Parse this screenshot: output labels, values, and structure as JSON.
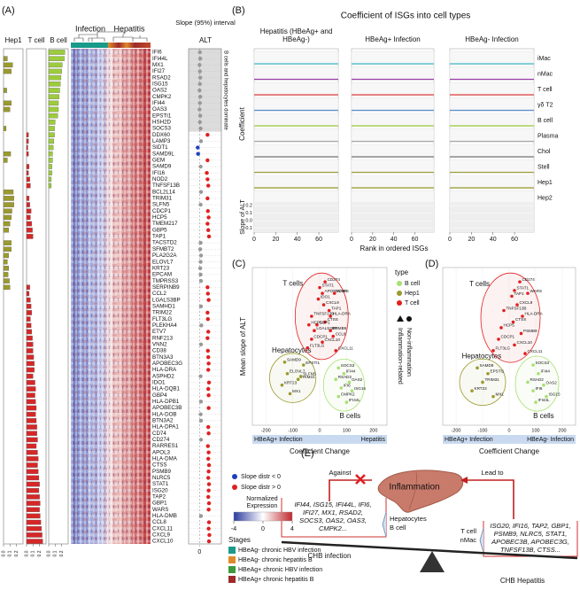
{
  "panel_labels": [
    "(A)",
    "(B)",
    "(C)",
    "(D)",
    "(E)"
  ],
  "panel_a": {
    "heatmap_groups": [
      "Infection",
      "Hepatitis"
    ],
    "genes": [
      "IFI6",
      "IFI44L",
      "MX1",
      "IFI27",
      "RSAD2",
      "ISG15",
      "OAS2",
      "CMPK2",
      "IFI44",
      "OAS3",
      "EPSTI1",
      "HSH2D",
      "SOCS3",
      "DDX60",
      "LAMP3",
      "SIDT1",
      "SAMD9L",
      "GEM",
      "SAMD9",
      "IFI16",
      "NOD2",
      "TNFSF13B",
      "BCL2L14",
      "TRIM31",
      "SLFN5",
      "CDCP1",
      "HCP5",
      "TMEM217",
      "GBP5",
      "TAP1",
      "TACSTD2",
      "SFMBT2",
      "PLA2G2A",
      "ELOVL7",
      "KRT23",
      "EPCAM",
      "TMPRSS3",
      "SERPINB9",
      "CCL2",
      "LGALS3BP",
      "SAMHD1",
      "TRIM22",
      "FLT3LG",
      "PLEKHA4",
      "ETV7",
      "RNF213",
      "VNN2",
      "CD38",
      "BTN3A3",
      "APOBEC3G",
      "HLA-DRA",
      "ASPHD2",
      "IDO1",
      "HLA-DQB1",
      "GBP4",
      "HLA-DPB1",
      "APOBEC3B",
      "HLA-DOB",
      "BTN3A2",
      "HLA-DPA1",
      "CD74",
      "CD274",
      "RARRES1",
      "APOL3",
      "HLA-DMA",
      "CTSS",
      "PSMB9",
      "NLRC5",
      "STAT1",
      "ISG20",
      "TAP2",
      "GBP1",
      "WARS",
      "HLA-DMB",
      "CCL8",
      "CXCL11",
      "CXCL9",
      "CXCL10"
    ],
    "bar_xlim": [
      0,
      0.3
    ],
    "bar_xticks": [
      {
        "value": 0,
        "label": "0.0"
      },
      {
        "value": 0.1,
        "label": "0.1"
      },
      {
        "value": 0.2,
        "label": "0.2"
      }
    ],
    "bars": [
      {
        "name": "Hep1",
        "color": "#9a9a2e",
        "values": [
          0,
          0.06,
          0.14,
          0.12,
          0,
          0,
          0.05,
          0,
          0.12,
          0.1,
          0,
          0,
          0.04,
          0,
          0,
          0,
          0.11,
          0.06,
          0,
          0,
          0,
          0,
          0.15,
          0.16,
          0.16,
          0.13,
          0.12,
          0.1,
          0.08,
          0,
          0.12,
          0.12,
          0.08,
          0.06,
          0.08,
          0.07,
          0.09,
          0.1,
          0,
          0,
          0,
          0,
          0,
          0,
          0,
          0,
          0,
          0,
          0,
          0,
          0,
          0,
          0,
          0,
          0,
          0,
          0,
          0,
          0,
          0,
          0,
          0,
          0,
          0,
          0,
          0,
          0,
          0,
          0,
          0,
          0,
          0,
          0,
          0,
          0,
          0,
          0,
          0
        ]
      },
      {
        "name": "T cell",
        "color": "#d62728",
        "values": [
          0,
          0,
          0,
          0,
          0,
          0,
          0,
          0,
          0,
          0,
          0,
          0,
          0,
          0.03,
          0.03,
          0.02,
          0.03,
          0,
          0.04,
          0.03,
          0.05,
          0.06,
          0,
          0.04,
          0.05,
          0.07,
          0.06,
          0.08,
          0.09,
          0.1,
          0,
          0,
          0,
          0,
          0,
          0,
          0,
          0.05,
          0.04,
          0.06,
          0.07,
          0.08,
          0.06,
          0.07,
          0.08,
          0.09,
          0.1,
          0.1,
          0.11,
          0.12,
          0.12,
          0.1,
          0.13,
          0.14,
          0.13,
          0.14,
          0.15,
          0.14,
          0.15,
          0.16,
          0.16,
          0.17,
          0.15,
          0.17,
          0.18,
          0.17,
          0.18,
          0.19,
          0.2,
          0.19,
          0.2,
          0.21,
          0.2,
          0.21,
          0.22,
          0.23,
          0.24,
          0.25
        ]
      },
      {
        "name": "B cell",
        "color": "#9ccc3c",
        "values": [
          0.25,
          0.24,
          0.21,
          0.2,
          0.19,
          0.18,
          0.17,
          0.16,
          0.15,
          0.15,
          0.14,
          0.1,
          0.09,
          0.09,
          0.08,
          0.07,
          0.06,
          0.06,
          0.05,
          0.05,
          0.04,
          0.04,
          0,
          0,
          0,
          0,
          0,
          0,
          0,
          0,
          0,
          0,
          0,
          0,
          0,
          0,
          0,
          0,
          0,
          0,
          0,
          0,
          0,
          0,
          0,
          0,
          0,
          0,
          0,
          0,
          0,
          0,
          0,
          0,
          0,
          0,
          0,
          0,
          0,
          0,
          0,
          0,
          0,
          0,
          0,
          0,
          0,
          0,
          0,
          0,
          0,
          0,
          0,
          0,
          0,
          0,
          0,
          0
        ]
      }
    ],
    "slope_title": "Slope (95%) interval",
    "slope_subtitle": "ALT",
    "shaded_label": "B cells and hepatocytes dominate",
    "slope_xlim": [
      -0.3,
      0.6
    ],
    "slope_xticks": [
      0
    ],
    "slope": {
      "values": [
        0.01,
        0.02,
        0.0,
        0.01,
        0.02,
        0.01,
        0.0,
        0.02,
        0.01,
        0.0,
        0.02,
        0.01,
        0.03,
        0.22,
        0.04,
        -0.05,
        -0.04,
        0.22,
        0.03,
        0.2,
        0.22,
        0.24,
        0.04,
        0.22,
        0.03,
        0.23,
        0.25,
        0.22,
        0.24,
        0.26,
        0.03,
        0.02,
        0.04,
        0.03,
        0.02,
        0.03,
        0.04,
        0.22,
        0.23,
        0.25,
        0.04,
        0.22,
        0.23,
        0.05,
        0.24,
        0.22,
        0.04,
        0.23,
        0.24,
        0.25,
        0.24,
        0.03,
        0.26,
        0.24,
        0.25,
        0.04,
        0.25,
        0.03,
        0.04,
        0.24,
        0.25,
        0.04,
        0.23,
        0.25,
        0.24,
        0.26,
        0.25,
        0.24,
        0.26,
        0.25,
        0.24,
        0.26,
        0.25,
        0.04,
        0.26,
        0.25,
        0.27,
        0.26
      ],
      "colors": [
        "#999",
        "#999",
        "#999",
        "#999",
        "#999",
        "#999",
        "#999",
        "#999",
        "#999",
        "#999",
        "#999",
        "#999",
        "#999",
        "#e02020",
        "#999",
        "#2040c0",
        "#2040c0",
        "#e02020",
        "#999",
        "#e02020",
        "#e02020",
        "#e02020",
        "#999",
        "#e02020",
        "#999",
        "#e02020",
        "#e02020",
        "#e02020",
        "#e02020",
        "#e02020",
        "#999",
        "#999",
        "#999",
        "#999",
        "#999",
        "#999",
        "#999",
        "#e02020",
        "#e02020",
        "#e02020",
        "#999",
        "#e02020",
        "#e02020",
        "#999",
        "#e02020",
        "#e02020",
        "#999",
        "#e02020",
        "#e02020",
        "#e02020",
        "#e02020",
        "#999",
        "#e02020",
        "#e02020",
        "#e02020",
        "#999",
        "#e02020",
        "#999",
        "#999",
        "#e02020",
        "#e02020",
        "#999",
        "#e02020",
        "#e02020",
        "#e02020",
        "#e02020",
        "#e02020",
        "#e02020",
        "#e02020",
        "#e02020",
        "#e02020",
        "#e02020",
        "#e02020",
        "#999",
        "#e02020",
        "#e02020",
        "#e02020",
        "#e02020"
      ]
    },
    "slope_legend": [
      {
        "label": "Slope distr < 0",
        "color": "#1f3fbf"
      },
      {
        "label": "Slope distr > 0",
        "color": "#e02020"
      }
    ],
    "expression_legend": {
      "title": [
        "Normalized",
        "Expression"
      ],
      "ticks": [
        -4,
        0,
        4
      ],
      "colors": [
        "#2b3a9e",
        "#ffffff",
        "#c0282c"
      ]
    },
    "stages": {
      "title": "Stages",
      "items": [
        {
          "label": "HBeAg- chronic HBV infection",
          "color": "#1a9a8a"
        },
        {
          "label": "HBeAg- chronic hepatitis B",
          "color": "#e08a2c"
        },
        {
          "label": "HBeAg+ chronic HBV infection",
          "color": "#3c9a3c"
        },
        {
          "label": "HBeAg+ chronic hepatitis B",
          "color": "#9e2a2a"
        }
      ]
    }
  },
  "panel_b": {
    "title": "Coefficient of ISGs into cell types",
    "column_titles": [
      [
        "Hepatitis (HBeAg+ and",
        "HBeAg-)"
      ],
      [
        "HBeAg+ Infection"
      ],
      [
        "HBeAg- Infection"
      ]
    ],
    "cell_types": [
      {
        "name": "iMac",
        "color": "#40b8c8"
      },
      {
        "name": "nMac",
        "color": "#9b3fa8"
      },
      {
        "name": "T cell",
        "color": "#e04040"
      },
      {
        "name": "γδ T2",
        "color": "#5a8fd0"
      },
      {
        "name": "B cell",
        "color": "#9ccc3c"
      },
      {
        "name": "Plasma",
        "color": "#aaaaaa"
      },
      {
        "name": "Chol",
        "color": "#777777"
      },
      {
        "name": "Stell",
        "color": "#a0a040"
      },
      {
        "name": "Hep1",
        "color": "#9a9a2e"
      },
      {
        "name": "Hep2",
        "color": "#3040b0"
      }
    ],
    "ylabel": "Coefficient",
    "slope_label": "Slope of ALT",
    "slope_ylim": [
      -0.15,
      0.25
    ],
    "slope_yticks": [
      {
        "value": 0.2,
        "label": "0.2"
      },
      {
        "value": 0.1,
        "label": "0.1"
      },
      {
        "value": 0,
        "label": "0.0"
      },
      {
        "value": -0.1,
        "label": "-0.1"
      }
    ],
    "xlabel": "Rank in ordered ISGs",
    "xlim": [
      0,
      78
    ],
    "xticks": [
      0,
      20,
      40,
      60
    ]
  },
  "legend_type": {
    "title": "type",
    "items": [
      {
        "label": "B cell",
        "color": "#a8e070"
      },
      {
        "label": "Hep1",
        "color": "#9a9a2e"
      },
      {
        "label": "T cell",
        "color": "#e02020"
      }
    ]
  },
  "legend_shape": [
    "Inflammation-related",
    "Non-inflammation"
  ],
  "scatter_panels": [
    {
      "ylabel": "Mean slope of ALT",
      "xlabel": "Coefficient Change",
      "axis_ends": [
        "HBeAg+ Infection",
        "Hepatitis"
      ],
      "regions": [
        "T cells",
        "Hepatocytes",
        "B cells"
      ],
      "xlim": [
        -250,
        250
      ],
      "ylim": [
        -0.2,
        0.35
      ],
      "xticks": [
        -200,
        -100,
        0,
        100,
        200
      ],
      "points": [
        {
          "label": "CD274",
          "x": 20,
          "y": 0.3,
          "type": 2
        },
        {
          "label": "STAT1",
          "x": 0,
          "y": 0.28,
          "type": 2
        },
        {
          "label": "APOBEC3G",
          "x": 10,
          "y": 0.26,
          "type": 2
        },
        {
          "label": "WARS",
          "x": 55,
          "y": 0.26,
          "type": 2
        },
        {
          "label": "IDO1",
          "x": -5,
          "y": 0.24,
          "type": 2
        },
        {
          "label": "CXCL9",
          "x": 15,
          "y": 0.22,
          "type": 2
        },
        {
          "label": "TAP1",
          "x": 35,
          "y": 0.2,
          "type": 2
        },
        {
          "label": "HLA-DRA",
          "x": 40,
          "y": 0.18,
          "type": 2
        },
        {
          "label": "TNFSF13B",
          "x": -30,
          "y": 0.18,
          "type": 2
        },
        {
          "label": "CTSS",
          "x": 20,
          "y": 0.16,
          "type": 2
        },
        {
          "label": "GBP1",
          "x": -10,
          "y": 0.15,
          "type": 2
        },
        {
          "label": "HCP5",
          "x": -40,
          "y": 0.15,
          "type": 2
        },
        {
          "label": "LGALS3BP",
          "x": -20,
          "y": 0.13,
          "type": 2
        },
        {
          "label": "PSMB9",
          "x": 40,
          "y": 0.13,
          "type": 2
        },
        {
          "label": "CCL8",
          "x": 50,
          "y": 0.11,
          "type": 2
        },
        {
          "label": "CDCP1",
          "x": -30,
          "y": 0.1,
          "type": 2
        },
        {
          "label": "CXCL10",
          "x": 10,
          "y": 0.09,
          "type": 2
        },
        {
          "label": "FLT3LG",
          "x": -45,
          "y": 0.07,
          "type": 2
        },
        {
          "label": "CXCL11",
          "x": 60,
          "y": 0.06,
          "type": 2
        },
        {
          "label": "SAMD9",
          "x": -130,
          "y": 0.02,
          "type": 1
        },
        {
          "label": "EPSTI1",
          "x": -60,
          "y": 0.01,
          "type": 1
        },
        {
          "label": "ELOVL7",
          "x": -120,
          "y": -0.02,
          "type": 1
        },
        {
          "label": "TRIM31",
          "x": -80,
          "y": -0.04,
          "type": 1
        },
        {
          "label": "KRT23",
          "x": -140,
          "y": -0.06,
          "type": 1
        },
        {
          "label": "MX1",
          "x": -110,
          "y": -0.09,
          "type": 1
        },
        {
          "label": "SLFN5",
          "x": -70,
          "y": -0.03,
          "type": 1
        },
        {
          "label": "SOCS3",
          "x": 70,
          "y": 0.0,
          "type": 0
        },
        {
          "label": "IFI44",
          "x": 90,
          "y": -0.02,
          "type": 0
        },
        {
          "label": "RSAD2",
          "x": 60,
          "y": -0.04,
          "type": 0
        },
        {
          "label": "OAS2",
          "x": 110,
          "y": -0.05,
          "type": 0
        },
        {
          "label": "IFI6",
          "x": 80,
          "y": -0.07,
          "type": 0
        },
        {
          "label": "ISG15",
          "x": 120,
          "y": -0.08,
          "type": 0
        },
        {
          "label": "CMPK2",
          "x": 70,
          "y": -0.1,
          "type": 0
        },
        {
          "label": "IFI44L",
          "x": 100,
          "y": -0.12,
          "type": 0
        }
      ]
    },
    {
      "ylabel": null,
      "xlabel": "Coefficient Change",
      "axis_ends": [
        "HBeAg+ Infection",
        "HBeAg- Infection"
      ],
      "regions": [
        "T cells",
        "Hepatocytes",
        "B cells"
      ],
      "xlim": [
        -250,
        250
      ],
      "ylim": [
        -0.2,
        0.35
      ],
      "xticks": [
        -200,
        -100,
        0,
        100,
        200
      ],
      "points": [
        {
          "label": "CD274",
          "x": 40,
          "y": 0.3,
          "type": 2
        },
        {
          "label": "STAT1",
          "x": 20,
          "y": 0.27,
          "type": 2
        },
        {
          "label": "TAP1",
          "x": 10,
          "y": 0.25,
          "type": 2
        },
        {
          "label": "WARS",
          "x": 70,
          "y": 0.26,
          "type": 2
        },
        {
          "label": "CXCL9",
          "x": 30,
          "y": 0.22,
          "type": 2
        },
        {
          "label": "TNFSF13B",
          "x": -20,
          "y": 0.2,
          "type": 2
        },
        {
          "label": "HLA-DRA",
          "x": 50,
          "y": 0.18,
          "type": 2
        },
        {
          "label": "CTSS",
          "x": 15,
          "y": 0.16,
          "type": 2
        },
        {
          "label": "HCP5",
          "x": -30,
          "y": 0.14,
          "type": 2
        },
        {
          "label": "PSMB9",
          "x": 45,
          "y": 0.12,
          "type": 2
        },
        {
          "label": "CDCP1",
          "x": -40,
          "y": 0.1,
          "type": 2
        },
        {
          "label": "CXCL10",
          "x": 20,
          "y": 0.08,
          "type": 2
        },
        {
          "label": "FLT3LG",
          "x": -60,
          "y": 0.06,
          "type": 2
        },
        {
          "label": "CXCL11",
          "x": 60,
          "y": 0.05,
          "type": 2
        },
        {
          "label": "SAMD9",
          "x": -120,
          "y": 0.0,
          "type": 1
        },
        {
          "label": "EPSTI1",
          "x": -80,
          "y": -0.02,
          "type": 1
        },
        {
          "label": "TRIM31",
          "x": -100,
          "y": -0.05,
          "type": 1
        },
        {
          "label": "KRT23",
          "x": -140,
          "y": -0.08,
          "type": 1
        },
        {
          "label": "MX1",
          "x": -60,
          "y": -0.1,
          "type": 1
        },
        {
          "label": "SOCS3",
          "x": 90,
          "y": 0.01,
          "type": 0
        },
        {
          "label": "IFI44",
          "x": 110,
          "y": -0.02,
          "type": 0
        },
        {
          "label": "RSAD2",
          "x": 70,
          "y": -0.05,
          "type": 0
        },
        {
          "label": "OAS2",
          "x": 130,
          "y": -0.06,
          "type": 0
        },
        {
          "label": "IFI6",
          "x": 90,
          "y": -0.08,
          "type": 0
        },
        {
          "label": "ISG15",
          "x": 140,
          "y": -0.1,
          "type": 0
        },
        {
          "label": "IFI44L",
          "x": 100,
          "y": -0.12,
          "type": 0
        }
      ]
    }
  ],
  "panel_e": {
    "against": "Against",
    "lead_to": "Lead to",
    "inflammation": "Inflammation",
    "left_genes": [
      "IFI44, ISG15, IFI44L, IFI6,",
      "IFI27, MX1, RSAD2,",
      "SOCS3, OAS2, OAS3,",
      "CMPK2..."
    ],
    "left_cells": [
      {
        "label": "Hepatocytes",
        "color": "#a0a030"
      },
      {
        "label": "B cell",
        "color": "#7cc040"
      }
    ],
    "right_cells": [
      {
        "label": "T cell",
        "color": "#d02020"
      },
      {
        "label": "nMac",
        "color": "#8040c0"
      }
    ],
    "right_genes": [
      "ISG20, IFI16, TAP2, GBP1,",
      "PSMB9, NLRC5, STAT1,",
      "APOBEC3B, APOBEC3G,",
      "TNFSF13B, CTSS..."
    ],
    "left_stage": "CHB infection",
    "right_stage": "CHB Hepatitis"
  }
}
